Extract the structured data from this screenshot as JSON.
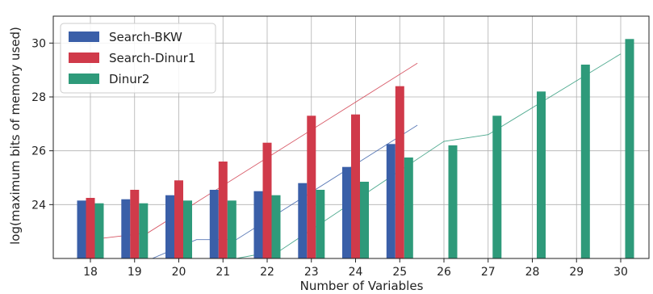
{
  "chart_data": {
    "type": "bar",
    "xlabel": "Number of Variables",
    "ylabel": "log(maximum bits of memory used)",
    "categories": [
      "18",
      "19",
      "20",
      "21",
      "22",
      "23",
      "24",
      "25",
      "26",
      "27",
      "28",
      "29",
      "30"
    ],
    "ylim": [
      22.0,
      31.0
    ],
    "y_ticks": [
      24,
      26,
      28,
      30
    ],
    "grid": true,
    "legend_position": "top-left",
    "series": [
      {
        "name": "Search-BKW",
        "color": "#3a5fa8",
        "values": [
          24.15,
          24.2,
          24.35,
          24.55,
          24.5,
          24.8,
          25.4,
          26.25,
          null,
          null,
          null,
          null,
          null
        ]
      },
      {
        "name": "Search-Dinur1",
        "color": "#d03a4a",
        "values": [
          24.25,
          24.55,
          24.9,
          25.6,
          26.3,
          27.3,
          27.35,
          28.4,
          null,
          null,
          null,
          null,
          null
        ]
      },
      {
        "name": "Dinur2",
        "color": "#2e9a7a",
        "values": [
          24.05,
          24.05,
          24.15,
          24.15,
          24.35,
          24.55,
          24.85,
          25.75,
          26.2,
          27.3,
          28.2,
          29.2,
          30.15
        ]
      }
    ],
    "trend_lines": [
      {
        "series": "Search-BKW",
        "color": "#3a5fa8",
        "points": [
          [
            18.3,
            21.2
          ],
          [
            19.4,
            21.75
          ],
          [
            20.4,
            22.7
          ],
          [
            21.3,
            22.7
          ],
          [
            25.4,
            26.95
          ]
        ]
      },
      {
        "series": "Search-Dinur1",
        "color": "#d03a4a",
        "points": [
          [
            18.0,
            22.7
          ],
          [
            19.3,
            22.95
          ],
          [
            25.4,
            29.25
          ]
        ]
      },
      {
        "series": "Dinur2",
        "color": "#2e9a7a",
        "points": [
          [
            21.3,
            22.0
          ],
          [
            22.3,
            22.3
          ],
          [
            26.0,
            26.35
          ],
          [
            27.0,
            26.6
          ],
          [
            30.0,
            29.6
          ]
        ]
      }
    ]
  }
}
